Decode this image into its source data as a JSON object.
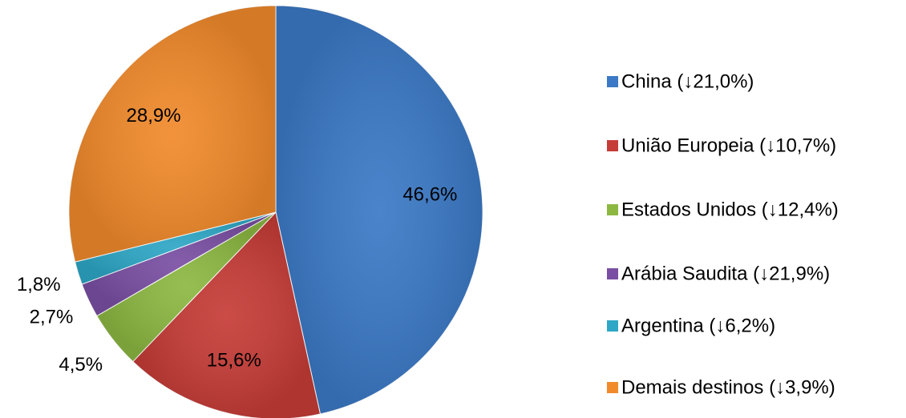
{
  "chart_data": {
    "type": "pie",
    "categories": [
      "China (↓21,0%)",
      "União Europeia (↓10,7%)",
      "Estados Unidos (↓12,4%)",
      "Arábia Saudita (↓21,9%)",
      "Argentina (↓6,2%)",
      "Demais destinos (↓3,9%)"
    ],
    "values": [
      46.6,
      15.6,
      4.5,
      2.7,
      1.8,
      28.9
    ],
    "value_labels": [
      "46,6%",
      "15,6%",
      "4,5%",
      "2,7%",
      "1,8%",
      "28,9%"
    ],
    "colors": [
      "#3b79c6",
      "#c63c37",
      "#8cb842",
      "#7a4fa3",
      "#2ea7c6",
      "#f18a2b"
    ],
    "legend": "right"
  }
}
